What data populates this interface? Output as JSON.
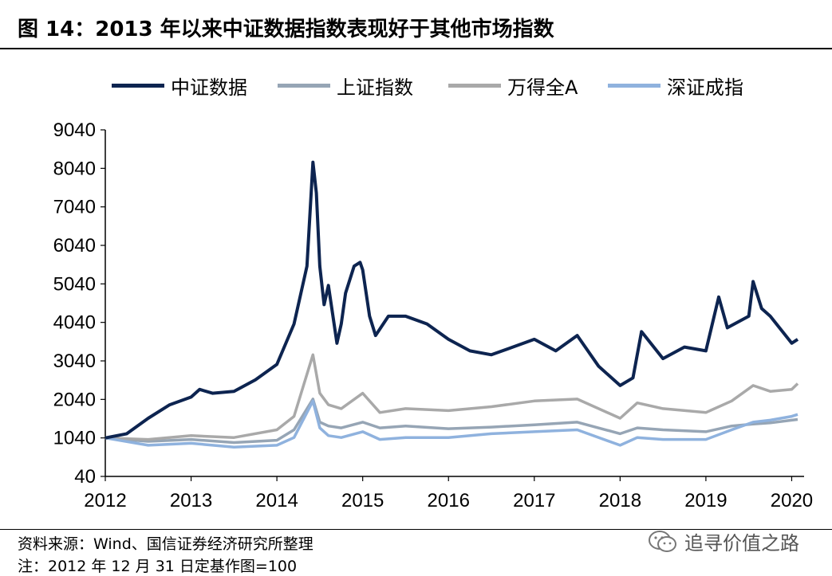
{
  "header": {
    "title": "图 14：2013 年以来中证数据指数表现好于其他市场指数"
  },
  "legend": [
    {
      "label": "中证数据",
      "color": "#0d2450"
    },
    {
      "label": "上证指数",
      "color": "#96a5b5"
    },
    {
      "label": "万得全A",
      "color": "#a9a9a9"
    },
    {
      "label": "深证成指",
      "color": "#8fb2de"
    }
  ],
  "footer": {
    "source": "资料来源：Wind、国信证券经济研究所整理",
    "note": "注：2012 年 12 月 31 日定基作图=100"
  },
  "watermark": {
    "text": "追寻价值之路",
    "icon": "wechat-icon"
  },
  "chart_data": {
    "type": "line",
    "title": "",
    "xlabel": "",
    "ylabel": "",
    "xlim": [
      2012.0,
      2020.07
    ],
    "ylim": [
      40,
      9040
    ],
    "y_ticks": [
      "40",
      "1040",
      "2040",
      "3040",
      "4040",
      "5040",
      "6040",
      "7040",
      "8040",
      "9040"
    ],
    "x_ticks": [
      "2012",
      "2013",
      "2014",
      "2015",
      "2016",
      "2017",
      "2018",
      "2019",
      "2020"
    ],
    "grid": false,
    "legend_position": "top",
    "series": [
      {
        "name": "中证数据",
        "color": "#0d2450",
        "x": [
          2012.0,
          2012.25,
          2012.5,
          2012.75,
          2013.0,
          2013.1,
          2013.25,
          2013.5,
          2013.75,
          2014.0,
          2014.2,
          2014.35,
          2014.42,
          2014.46,
          2014.5,
          2014.55,
          2014.6,
          2014.7,
          2014.75,
          2014.8,
          2014.9,
          2014.97,
          2015.0,
          2015.08,
          2015.15,
          2015.3,
          2015.5,
          2015.75,
          2016.0,
          2016.25,
          2016.5,
          2016.75,
          2017.0,
          2017.25,
          2017.5,
          2017.75,
          2018.0,
          2018.15,
          2018.25,
          2018.5,
          2018.75,
          2019.0,
          2019.15,
          2019.25,
          2019.5,
          2019.55,
          2019.65,
          2019.75,
          2020.0,
          2020.07
        ],
        "y": [
          1040,
          1150,
          1550,
          1900,
          2100,
          2300,
          2200,
          2250,
          2550,
          2950,
          4000,
          5500,
          8200,
          7400,
          5500,
          4500,
          5000,
          3500,
          4000,
          4800,
          5500,
          5600,
          5400,
          4200,
          3700,
          4200,
          4200,
          4000,
          3600,
          3300,
          3200,
          3400,
          3600,
          3300,
          3700,
          2900,
          2400,
          2600,
          3800,
          3100,
          3400,
          3300,
          4700,
          3900,
          4200,
          5100,
          4400,
          4200,
          3500,
          3600
        ]
      },
      {
        "name": "上证指数",
        "color": "#96a5b5",
        "x": [
          2012.0,
          2012.5,
          2013.0,
          2013.5,
          2014.0,
          2014.2,
          2014.42,
          2014.5,
          2014.6,
          2014.75,
          2015.0,
          2015.2,
          2015.5,
          2016.0,
          2016.5,
          2017.0,
          2017.5,
          2018.0,
          2018.2,
          2018.5,
          2019.0,
          2019.3,
          2019.55,
          2019.75,
          2020.0,
          2020.07
        ],
        "y": [
          1040,
          950,
          1000,
          920,
          980,
          1250,
          2050,
          1450,
          1350,
          1300,
          1450,
          1300,
          1350,
          1280,
          1320,
          1380,
          1450,
          1150,
          1300,
          1250,
          1200,
          1350,
          1400,
          1430,
          1500,
          1520
        ]
      },
      {
        "name": "万得全A",
        "color": "#a9a9a9",
        "x": [
          2012.0,
          2012.5,
          2013.0,
          2013.5,
          2014.0,
          2014.2,
          2014.42,
          2014.5,
          2014.6,
          2014.75,
          2015.0,
          2015.2,
          2015.5,
          2016.0,
          2016.5,
          2017.0,
          2017.5,
          2018.0,
          2018.2,
          2018.5,
          2019.0,
          2019.3,
          2019.55,
          2019.75,
          2020.0,
          2020.07
        ],
        "y": [
          1040,
          1000,
          1100,
          1050,
          1250,
          1600,
          3200,
          2200,
          1900,
          1800,
          2200,
          1700,
          1800,
          1750,
          1850,
          2000,
          2050,
          1550,
          1950,
          1800,
          1700,
          2000,
          2400,
          2250,
          2300,
          2450
        ]
      },
      {
        "name": "深证成指",
        "color": "#8fb2de",
        "x": [
          2012.0,
          2012.5,
          2013.0,
          2013.5,
          2014.0,
          2014.2,
          2014.42,
          2014.5,
          2014.6,
          2014.75,
          2015.0,
          2015.2,
          2015.5,
          2016.0,
          2016.5,
          2017.0,
          2017.5,
          2018.0,
          2018.2,
          2018.5,
          2019.0,
          2019.3,
          2019.55,
          2019.75,
          2020.0,
          2020.07
        ],
        "y": [
          1040,
          850,
          900,
          800,
          850,
          1050,
          2000,
          1300,
          1100,
          1050,
          1200,
          1000,
          1050,
          1050,
          1150,
          1200,
          1250,
          850,
          1050,
          1000,
          1000,
          1250,
          1450,
          1500,
          1600,
          1650
        ]
      }
    ]
  }
}
